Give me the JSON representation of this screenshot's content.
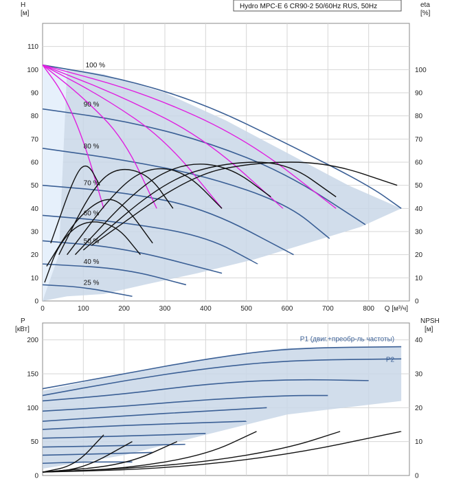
{
  "chart_data": [
    {
      "type": "line",
      "title": "Hydro MPC-E 6 CR90-2 50/60Hz RUS, 50Hz",
      "ylabel_left": "H",
      "ylabel_left_unit": "[м]",
      "ylabel_right": "eta",
      "ylabel_right_unit": "[%]",
      "xlabel": "Q [м³/ч]",
      "xlim": [
        0,
        900
      ],
      "ylim": [
        0,
        120
      ],
      "x_ticks": [
        0,
        100,
        200,
        300,
        400,
        500,
        600,
        700,
        800
      ],
      "y_ticks": [
        0,
        10,
        20,
        30,
        40,
        50,
        60,
        70,
        80,
        90,
        100,
        110
      ],
      "right_ticks": [
        0,
        10,
        20,
        30,
        40,
        50,
        60,
        70,
        80,
        90,
        100
      ],
      "speed_labels": [
        {
          "text": "100 %",
          "x": 55,
          "y": 101
        },
        {
          "text": "90 %",
          "x": 50,
          "y": 84
        },
        {
          "text": "80 %",
          "x": 50,
          "y": 66
        },
        {
          "text": "70 %",
          "x": 50,
          "y": 50
        },
        {
          "text": "60 %",
          "x": 50,
          "y": 37
        },
        {
          "text": "50 %",
          "x": 50,
          "y": 25
        },
        {
          "text": "40 %",
          "x": 50,
          "y": 16
        },
        {
          "text": "25 %",
          "x": 50,
          "y": 7
        }
      ],
      "envelope_boundary": [
        [
          0,
          102
        ],
        [
          150,
          98
        ],
        [
          300,
          90
        ],
        [
          450,
          78
        ],
        [
          600,
          64
        ],
        [
          750,
          50
        ],
        [
          880,
          40
        ],
        [
          780,
          32
        ],
        [
          650,
          25
        ],
        [
          520,
          18
        ],
        [
          380,
          12
        ],
        [
          250,
          7
        ],
        [
          150,
          3
        ],
        [
          60,
          2
        ],
        [
          0,
          0
        ]
      ],
      "qh_curves": [
        {
          "speed": 100,
          "points": [
            [
              0,
              102
            ],
            [
              200,
              96
            ],
            [
              400,
              85
            ],
            [
              600,
              68
            ],
            [
              800,
              50
            ],
            [
              880,
              40
            ]
          ]
        },
        {
          "speed": 90,
          "points": [
            [
              0,
              83
            ],
            [
              200,
              78
            ],
            [
              400,
              69
            ],
            [
              600,
              55
            ],
            [
              792,
              33
            ]
          ]
        },
        {
          "speed": 80,
          "points": [
            [
              0,
              66
            ],
            [
              200,
              61
            ],
            [
              400,
              54
            ],
            [
              600,
              42
            ],
            [
              704,
              27
            ]
          ]
        },
        {
          "speed": 70,
          "points": [
            [
              0,
              50
            ],
            [
              200,
              47
            ],
            [
              400,
              40
            ],
            [
              616,
              20
            ]
          ]
        },
        {
          "speed": 60,
          "points": [
            [
              0,
              37
            ],
            [
              200,
              34
            ],
            [
              400,
              28
            ],
            [
              528,
              16
            ]
          ]
        },
        {
          "speed": 50,
          "points": [
            [
              0,
              26
            ],
            [
              200,
              23
            ],
            [
              440,
              12
            ]
          ]
        },
        {
          "speed": 40,
          "points": [
            [
              0,
              16
            ],
            [
              200,
              14
            ],
            [
              352,
              7
            ]
          ]
        },
        {
          "speed": 25,
          "points": [
            [
              0,
              7
            ],
            [
              100,
              6
            ],
            [
              220,
              2
            ]
          ]
        }
      ],
      "system_curves": [
        {
          "points": [
            [
              0,
              102
            ],
            [
              50,
              90
            ],
            [
              100,
              70
            ],
            [
              150,
              40
            ]
          ]
        },
        {
          "points": [
            [
              0,
              102
            ],
            [
              100,
              88
            ],
            [
              200,
              70
            ],
            [
              280,
              40
            ]
          ]
        },
        {
          "points": [
            [
              0,
              102
            ],
            [
              150,
              88
            ],
            [
              300,
              70
            ],
            [
              440,
              40
            ]
          ]
        },
        {
          "points": [
            [
              0,
              102
            ],
            [
              200,
              88
            ],
            [
              400,
              70
            ],
            [
              590,
              40
            ]
          ]
        },
        {
          "points": [
            [
              0,
              102
            ],
            [
              250,
              90
            ],
            [
              500,
              70
            ],
            [
              720,
              40
            ]
          ]
        }
      ],
      "efficiency_curves": [
        {
          "points": [
            [
              20,
              25
            ],
            [
              80,
              55
            ],
            [
              110,
              60
            ],
            [
              140,
              50
            ]
          ]
        },
        {
          "points": [
            [
              40,
              20
            ],
            [
              120,
              48
            ],
            [
              180,
              58
            ],
            [
              260,
              55
            ],
            [
              320,
              40
            ]
          ]
        },
        {
          "points": [
            [
              60,
              20
            ],
            [
              180,
              48
            ],
            [
              260,
              58
            ],
            [
              350,
              56
            ],
            [
              440,
              40
            ]
          ]
        },
        {
          "points": [
            [
              80,
              20
            ],
            [
              240,
              50
            ],
            [
              350,
              60
            ],
            [
              460,
              58
            ],
            [
              560,
              45
            ]
          ]
        },
        {
          "points": [
            [
              100,
              22
            ],
            [
              300,
              52
            ],
            [
              450,
              60
            ],
            [
              600,
              60
            ],
            [
              720,
              45
            ]
          ]
        },
        {
          "points": [
            [
              120,
              24
            ],
            [
              360,
              54
            ],
            [
              520,
              60
            ],
            [
              700,
              60
            ],
            [
              870,
              50
            ]
          ]
        },
        {
          "points": [
            [
              10,
              15
            ],
            [
              80,
              35
            ],
            [
              150,
              45
            ],
            [
              200,
              42
            ],
            [
              270,
              25
            ]
          ]
        },
        {
          "points": [
            [
              5,
              8
            ],
            [
              40,
              25
            ],
            [
              100,
              35
            ],
            [
              180,
              33
            ],
            [
              240,
              20
            ]
          ]
        }
      ]
    },
    {
      "type": "line",
      "ylabel_left": "P",
      "ylabel_left_unit": "[кВт]",
      "ylabel_right": "NPSH",
      "ylabel_right_unit": "[м]",
      "ylim": [
        0,
        225
      ],
      "y_ticks": [
        0,
        50,
        100,
        150,
        200
      ],
      "right_ticks": [
        0,
        10,
        20,
        30,
        40
      ],
      "right_ylim": [
        0,
        45
      ],
      "series": [
        {
          "name": "P1 (двиг.+преобр-ль частоты)",
          "points": [
            [
              0,
              128
            ],
            [
              200,
              150
            ],
            [
              400,
              172
            ],
            [
              600,
              188
            ],
            [
              880,
              190
            ]
          ]
        },
        {
          "name": "P2",
          "points": [
            [
              0,
              118
            ],
            [
              200,
              140
            ],
            [
              400,
              158
            ],
            [
              600,
              170
            ],
            [
              880,
              172
            ]
          ]
        }
      ],
      "power_curves": [
        {
          "points": [
            [
              0,
              110
            ],
            [
              200,
              120
            ],
            [
              400,
              135
            ],
            [
              600,
              142
            ],
            [
              800,
              140
            ]
          ]
        },
        {
          "points": [
            [
              0,
              95
            ],
            [
              200,
              102
            ],
            [
              400,
              112
            ],
            [
              600,
              118
            ],
            [
              700,
              118
            ]
          ]
        },
        {
          "points": [
            [
              0,
              80
            ],
            [
              200,
              88
            ],
            [
              400,
              95
            ],
            [
              550,
              100
            ]
          ]
        },
        {
          "points": [
            [
              0,
              68
            ],
            [
              200,
              74
            ],
            [
              400,
              78
            ],
            [
              500,
              80
            ]
          ]
        },
        {
          "points": [
            [
              0,
              55
            ],
            [
              200,
              58
            ],
            [
              400,
              62
            ]
          ]
        },
        {
          "points": [
            [
              0,
              42
            ],
            [
              200,
              44
            ],
            [
              350,
              46
            ]
          ]
        },
        {
          "points": [
            [
              0,
              30
            ],
            [
              150,
              32
            ],
            [
              270,
              34
            ]
          ]
        },
        {
          "points": [
            [
              0,
              18
            ],
            [
              100,
              20
            ],
            [
              220,
              20
            ]
          ]
        }
      ],
      "npsh_curves": [
        {
          "points": [
            [
              0,
              1
            ],
            [
              300,
              2
            ],
            [
              600,
              6
            ],
            [
              880,
              13
            ]
          ]
        },
        {
          "points": [
            [
              0,
              1
            ],
            [
              200,
              2
            ],
            [
              400,
              4
            ],
            [
              600,
              8
            ],
            [
              730,
              13
            ]
          ]
        },
        {
          "points": [
            [
              0,
              1
            ],
            [
              200,
              2
            ],
            [
              400,
              6
            ],
            [
              525,
              13
            ]
          ]
        },
        {
          "points": [
            [
              0,
              1
            ],
            [
              200,
              3
            ],
            [
              330,
              10
            ]
          ]
        },
        {
          "points": [
            [
              0,
              1
            ],
            [
              100,
              2
            ],
            [
              220,
              10
            ]
          ]
        },
        {
          "points": [
            [
              0,
              1
            ],
            [
              80,
              3
            ],
            [
              150,
              12
            ]
          ]
        }
      ]
    }
  ]
}
